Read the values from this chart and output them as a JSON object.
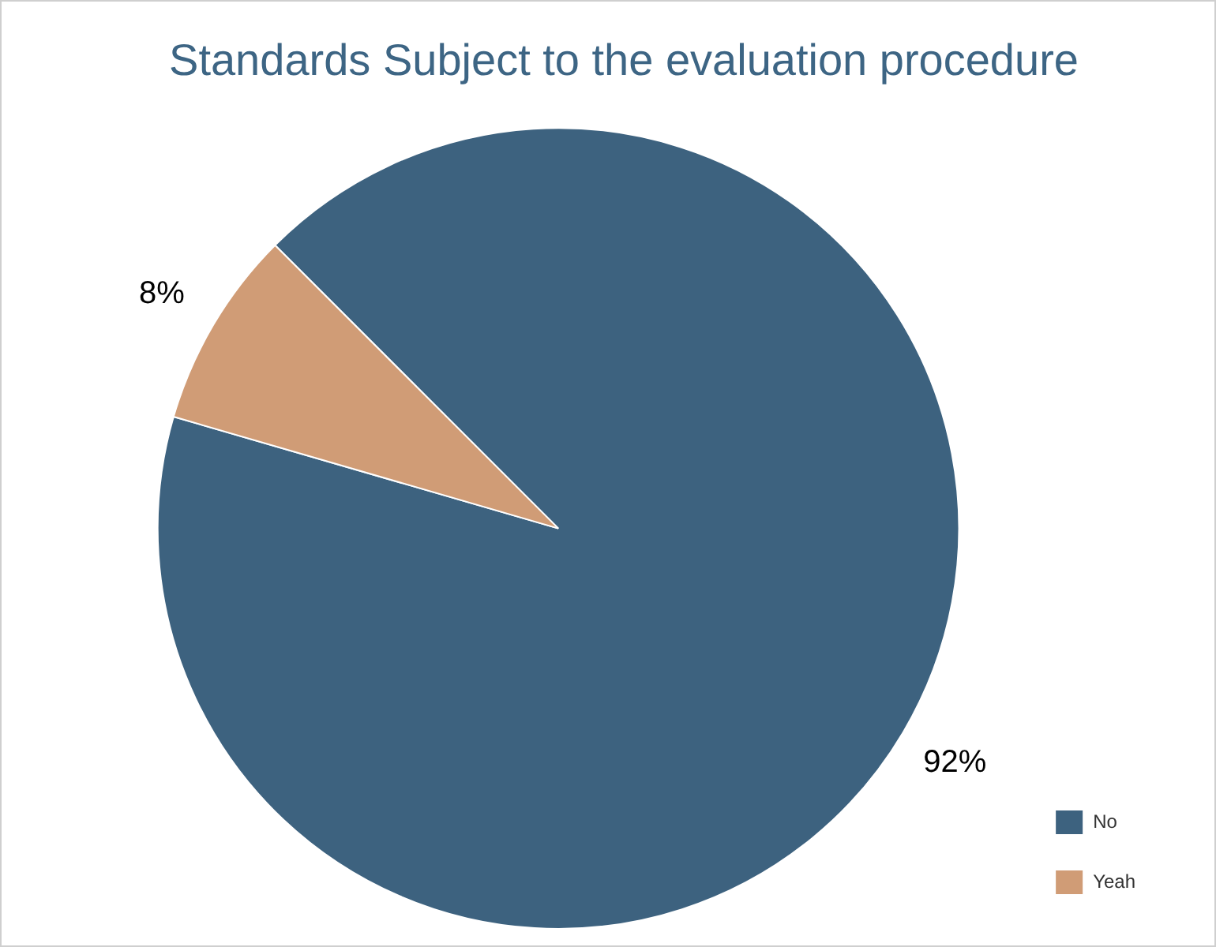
{
  "chart_data": {
    "type": "pie",
    "title": "Standards Subject to the evaluation procedure",
    "categories": [
      "No",
      "Yeah"
    ],
    "values": [
      92,
      8
    ],
    "value_labels": [
      "92%",
      "8%"
    ],
    "colors": [
      "#3d627f",
      "#d09c76"
    ],
    "legend": "bottom right"
  }
}
